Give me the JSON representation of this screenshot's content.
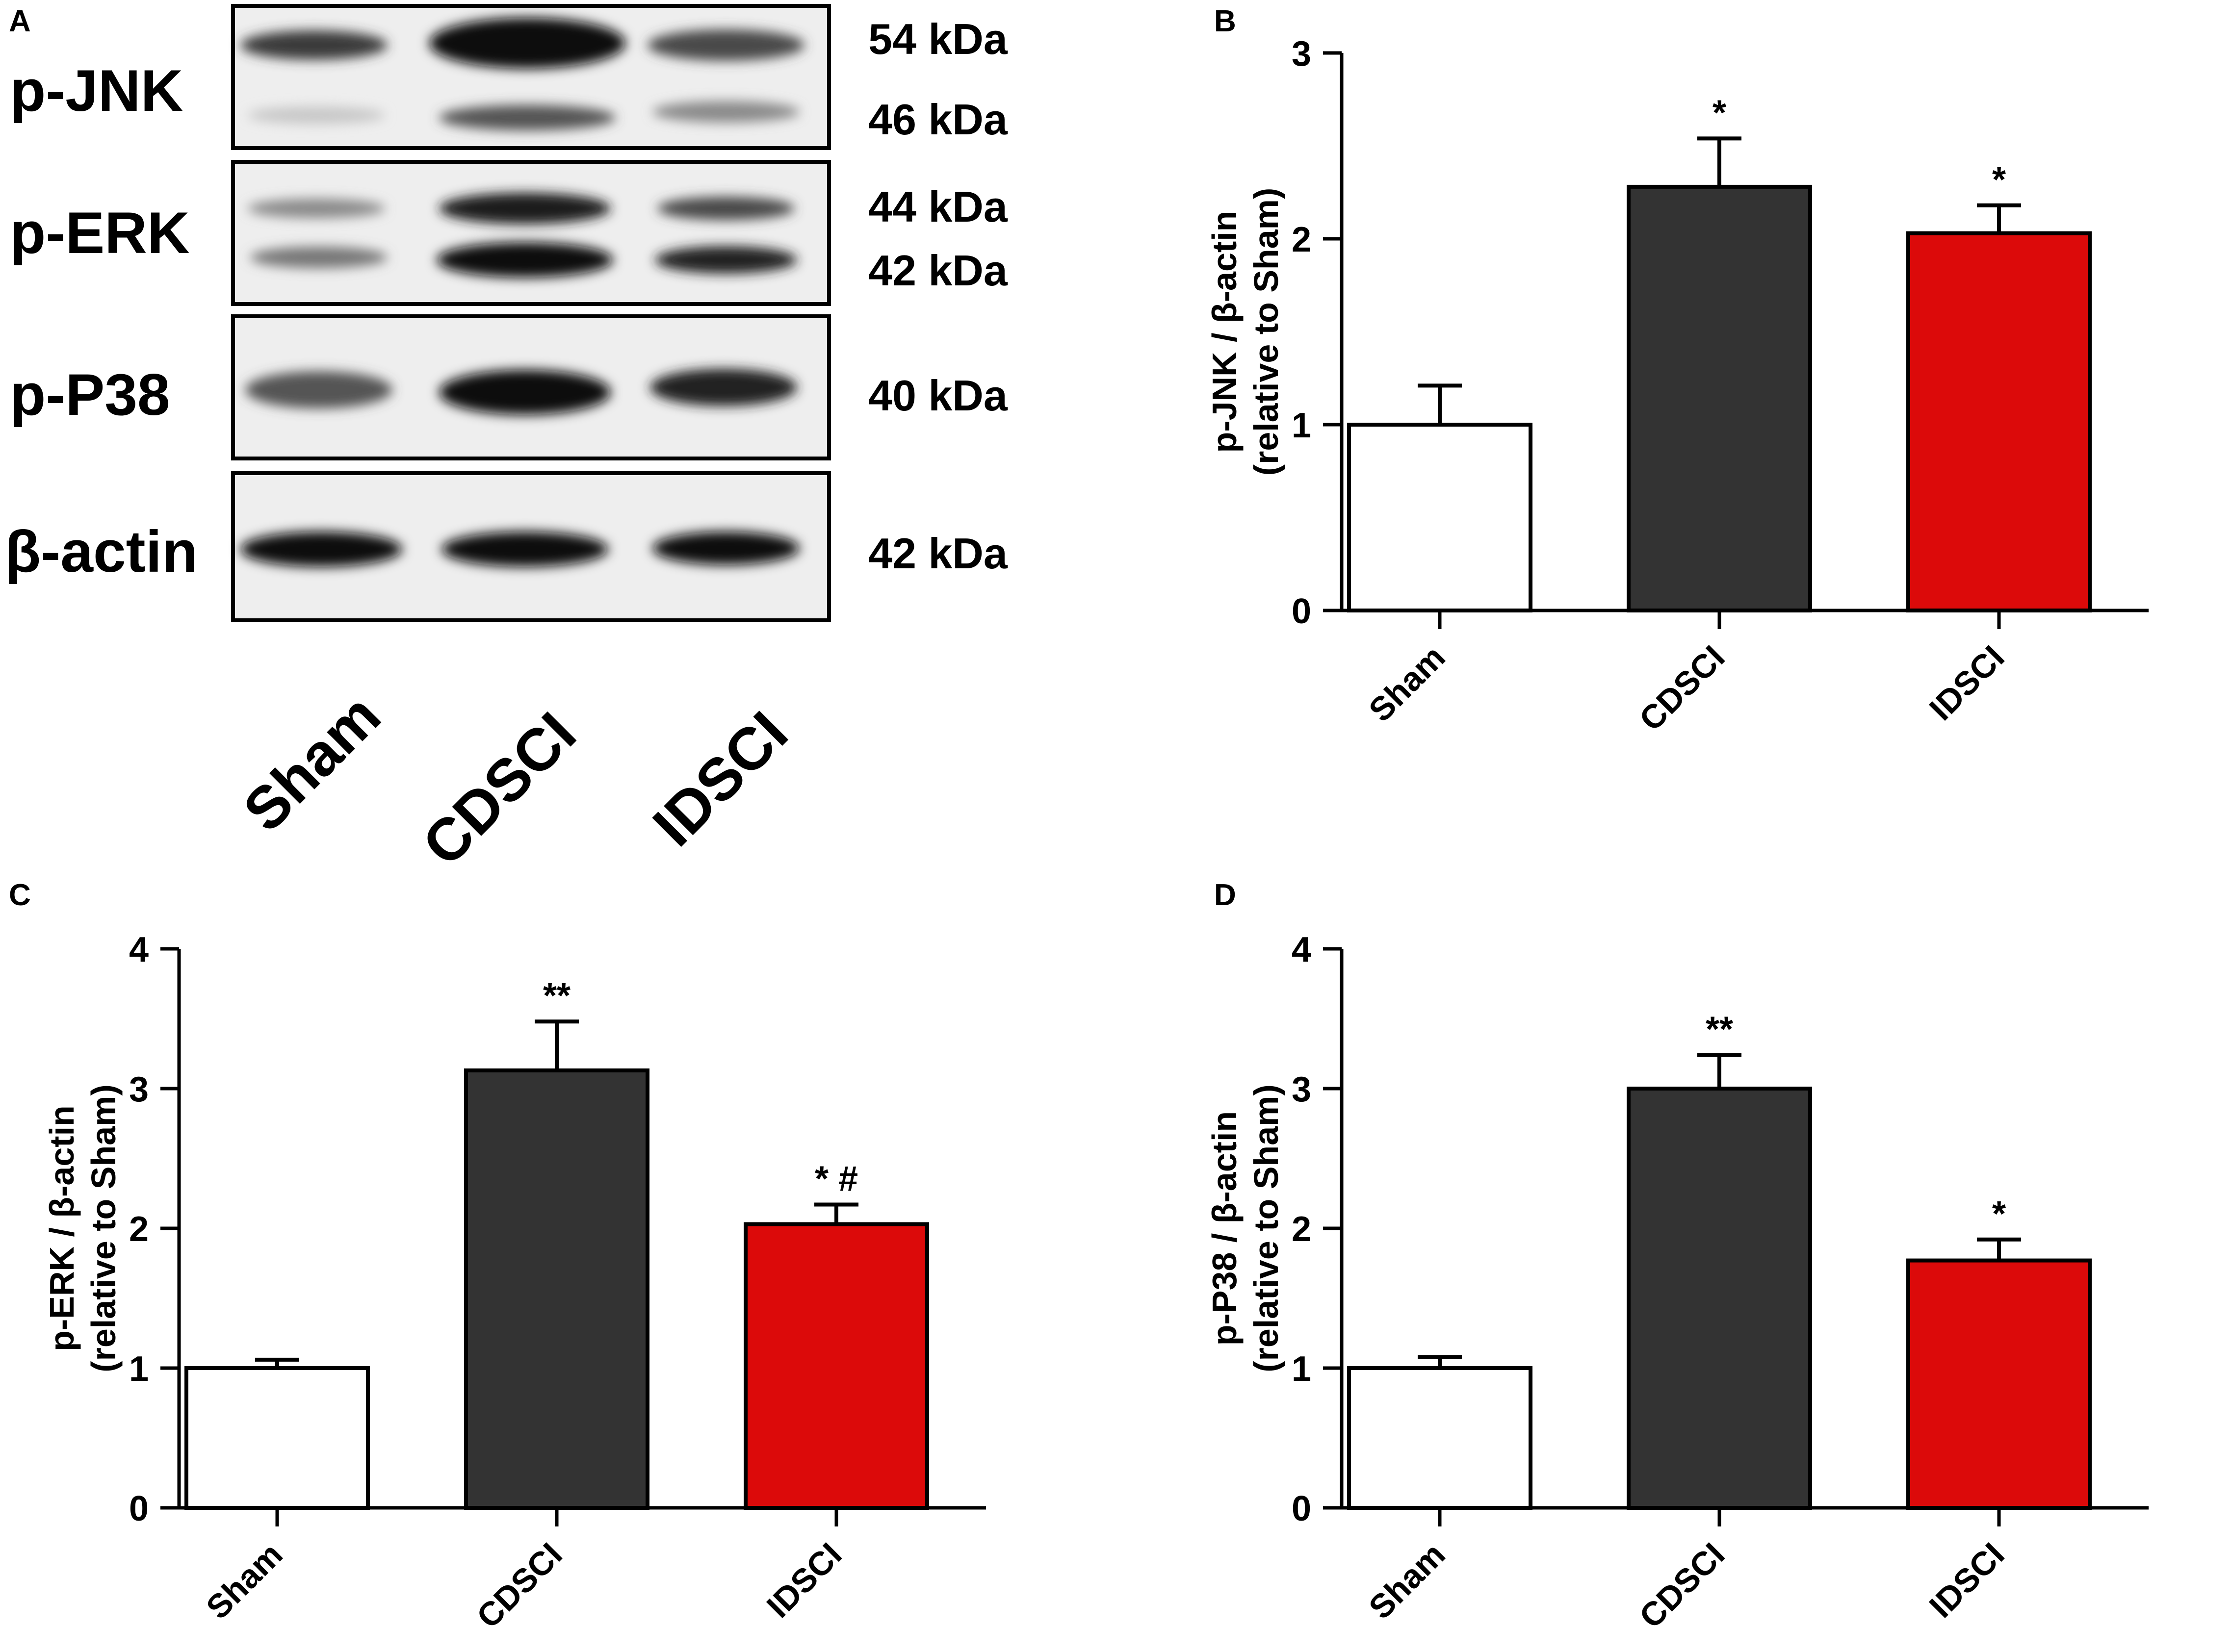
{
  "panel_letters": {
    "a": "A",
    "b": "B",
    "c": "C",
    "d": "D"
  },
  "blot": {
    "lanes": [
      "Sham",
      "CDSCI",
      "IDSCI"
    ],
    "rows": [
      {
        "label": "p-JNK",
        "kda": [
          "54 kDa",
          "46 kDa"
        ]
      },
      {
        "label": "p-ERK",
        "kda": [
          "44 kDa",
          "42 kDa"
        ]
      },
      {
        "label": "p-P38",
        "kda": [
          "40 kDa"
        ]
      },
      {
        "label": "β-actin",
        "kda": [
          "42 kDa"
        ]
      }
    ]
  },
  "colors": {
    "sham": "#ffffff",
    "cdsci": "#333333",
    "idsci": "#dc0a0a",
    "axis": "#000000"
  },
  "chart_data": [
    {
      "panel": "B",
      "type": "bar",
      "categories": [
        "Sham",
        "CDSCI",
        "IDSCI"
      ],
      "values": [
        1.0,
        2.28,
        2.03
      ],
      "errors": [
        0.21,
        0.26,
        0.15
      ],
      "annotations": [
        "",
        "*",
        "*"
      ],
      "ylabel": [
        "p-JNK / β-actin",
        "(relative to Sham)"
      ],
      "ylim": [
        0,
        3
      ],
      "yticks": [
        0,
        1,
        2,
        3
      ]
    },
    {
      "panel": "C",
      "type": "bar",
      "categories": [
        "Sham",
        "CDSCI",
        "IDSCI"
      ],
      "values": [
        1.0,
        3.13,
        2.03
      ],
      "errors": [
        0.06,
        0.35,
        0.14
      ],
      "annotations": [
        "",
        "**",
        "* #"
      ],
      "ylabel": [
        "p-ERK / β-actin",
        "(relative to Sham)"
      ],
      "ylim": [
        0,
        4
      ],
      "yticks": [
        0,
        1,
        2,
        3,
        4
      ]
    },
    {
      "panel": "D",
      "type": "bar",
      "categories": [
        "Sham",
        "CDSCI",
        "IDSCI"
      ],
      "values": [
        1.0,
        3.0,
        1.77
      ],
      "errors": [
        0.08,
        0.24,
        0.15
      ],
      "annotations": [
        "",
        "**",
        "*"
      ],
      "ylabel": [
        "p-P38 / β-actin",
        "(relative to Sham)"
      ],
      "ylim": [
        0,
        4
      ],
      "yticks": [
        0,
        1,
        2,
        3,
        4
      ]
    }
  ]
}
